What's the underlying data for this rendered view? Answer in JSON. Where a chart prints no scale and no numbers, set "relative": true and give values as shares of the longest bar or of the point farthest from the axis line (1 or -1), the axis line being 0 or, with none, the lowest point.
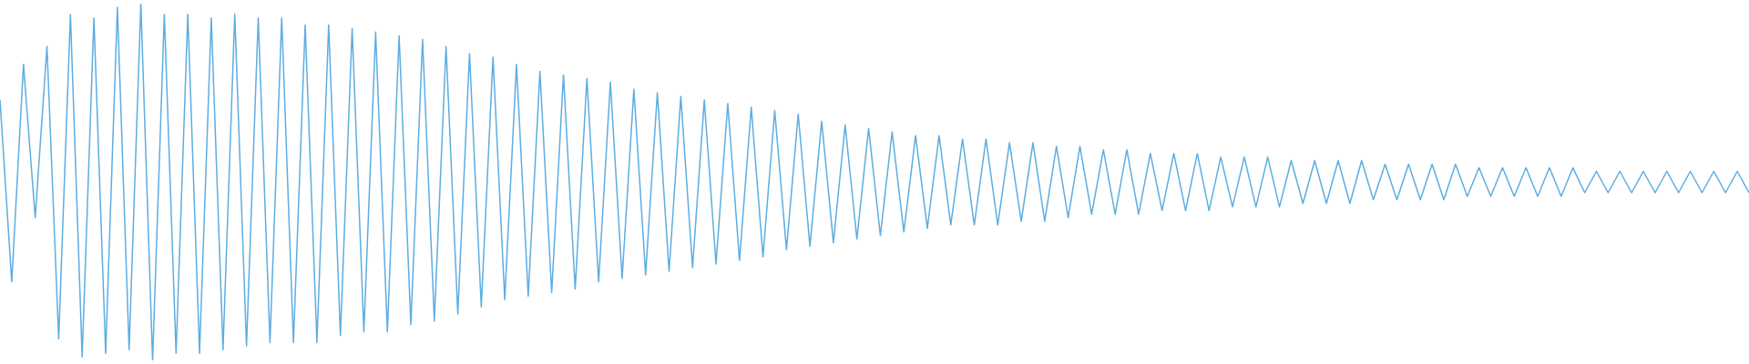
{
  "chart_data": {
    "type": "line",
    "relative": true,
    "color": "#5dade2",
    "categories": [
      null,
      null,
      null,
      null,
      null,
      null,
      null,
      null,
      null,
      null,
      null,
      null,
      null,
      null,
      null,
      null,
      null,
      null,
      null,
      null,
      null,
      null,
      null,
      null,
      null,
      null,
      null,
      null,
      null,
      null,
      null,
      null,
      null,
      null,
      null,
      null,
      null,
      null,
      null,
      null,
      null,
      null,
      null,
      null,
      null,
      null,
      null,
      null,
      null,
      null,
      null,
      null,
      null,
      null,
      null,
      null,
      null,
      null,
      null,
      null,
      null,
      null,
      null,
      null,
      null,
      null,
      null,
      null,
      null,
      null,
      null,
      null,
      null,
      null,
      null,
      null,
      null,
      null,
      null,
      null,
      null,
      null,
      null,
      null,
      null,
      null,
      null,
      null,
      null,
      null,
      null,
      null,
      null,
      null,
      null,
      null,
      null,
      null,
      null,
      null,
      null,
      null,
      null,
      null,
      null,
      null,
      null,
      null,
      null,
      null,
      null,
      null,
      null,
      null,
      null,
      null,
      null,
      null,
      null,
      null,
      null,
      null,
      null,
      null,
      null,
      null,
      null,
      null,
      null,
      null,
      null,
      null,
      null,
      null,
      null,
      null,
      null,
      null,
      null,
      null,
      null,
      null,
      null,
      null,
      null,
      null,
      null,
      null,
      null,
      null
    ],
    "values": [
      0.73,
      0.22,
      0.83,
      0.4,
      0.88,
      0.06,
      0.97,
      0.01,
      0.96,
      0.02,
      0.99,
      0.03,
      1.0,
      0.0,
      0.97,
      0.02,
      0.97,
      0.02,
      0.96,
      0.03,
      0.97,
      0.04,
      0.96,
      0.05,
      0.96,
      0.05,
      0.94,
      0.05,
      0.94,
      0.07,
      0.93,
      0.08,
      0.92,
      0.08,
      0.91,
      0.1,
      0.9,
      0.11,
      0.88,
      0.13,
      0.86,
      0.15,
      0.85,
      0.17,
      0.83,
      0.18,
      0.81,
      0.19,
      0.8,
      0.2,
      0.79,
      0.22,
      0.78,
      0.23,
      0.76,
      0.24,
      0.75,
      0.25,
      0.74,
      0.26,
      0.73,
      0.27,
      0.72,
      0.28,
      0.71,
      0.29,
      0.7,
      0.31,
      0.69,
      0.32,
      0.67,
      0.33,
      0.66,
      0.34,
      0.65,
      0.35,
      0.64,
      0.36,
      0.63,
      0.37,
      0.63,
      0.38,
      0.62,
      0.38,
      0.62,
      0.38,
      0.61,
      0.39,
      0.61,
      0.39,
      0.6,
      0.4,
      0.6,
      0.41,
      0.59,
      0.41,
      0.59,
      0.41,
      0.58,
      0.42,
      0.58,
      0.42,
      0.58,
      0.42,
      0.57,
      0.43,
      0.57,
      0.43,
      0.57,
      0.43,
      0.56,
      0.44,
      0.56,
      0.44,
      0.56,
      0.44,
      0.56,
      0.45,
      0.55,
      0.45,
      0.55,
      0.45,
      0.55,
      0.45,
      0.55,
      0.46,
      0.54,
      0.46,
      0.54,
      0.46,
      0.54,
      0.46,
      0.54,
      0.46,
      0.54,
      0.47,
      0.53,
      0.47,
      0.53,
      0.47,
      0.53,
      0.47,
      0.53,
      0.47,
      0.53,
      0.47,
      0.53,
      0.47,
      0.53,
      0.47
    ]
  }
}
